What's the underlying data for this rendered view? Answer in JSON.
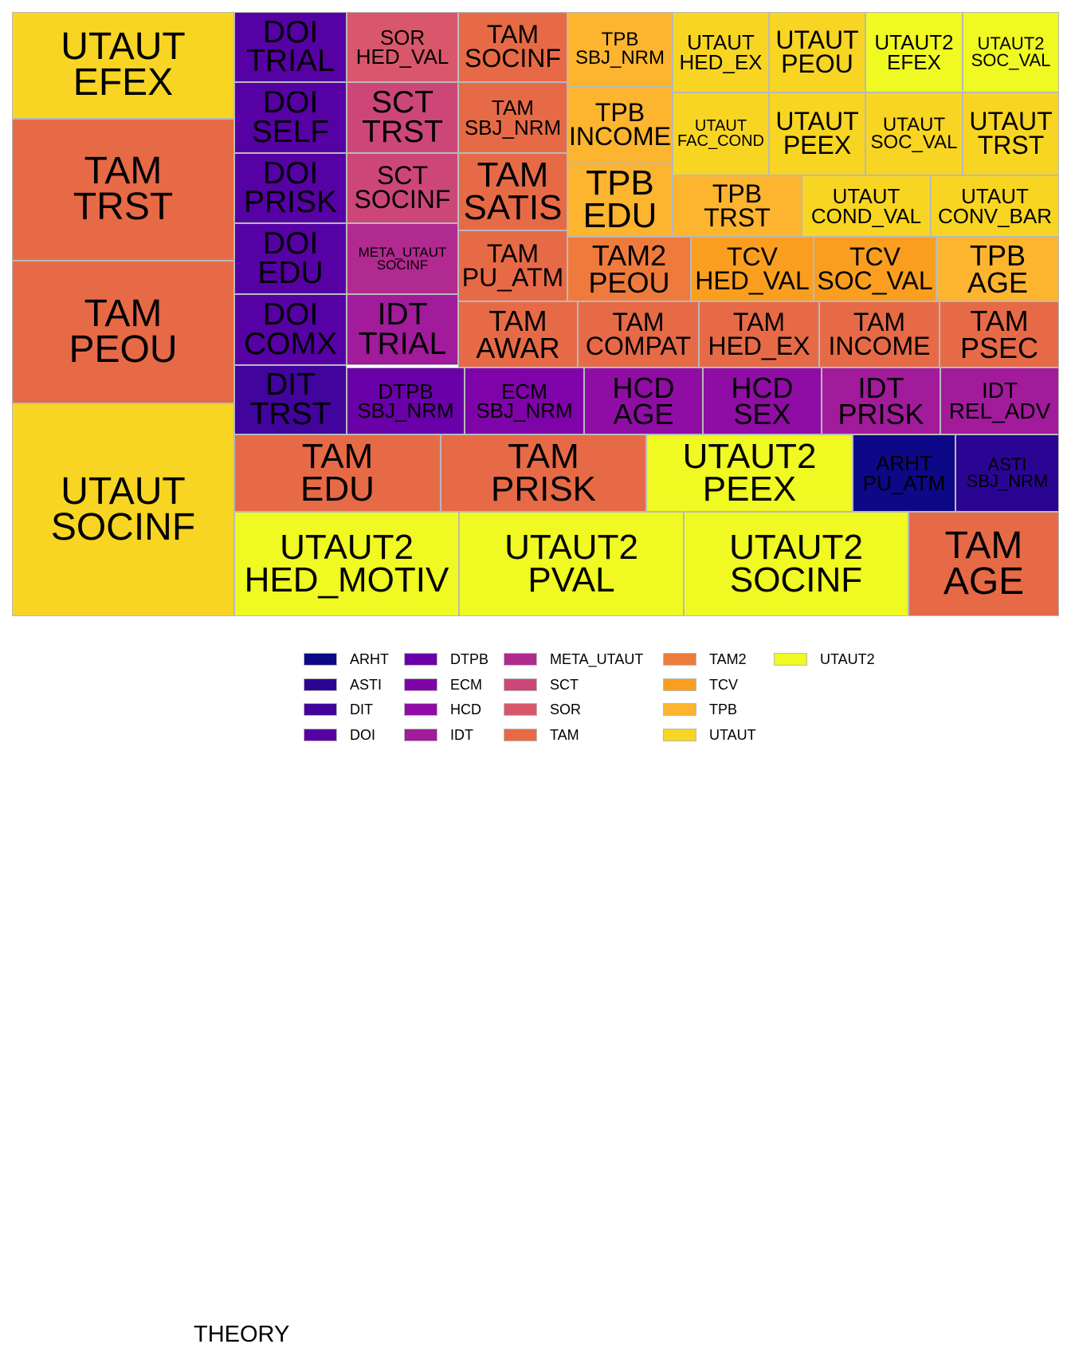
{
  "chart_data": {
    "type": "treemap",
    "title": "",
    "tiles": [
      {
        "theory": "UTAUT",
        "label": [
          "UTAUT",
          "EFEX"
        ],
        "value": 41
      },
      {
        "theory": "TAM",
        "label": [
          "TAM",
          "TRST"
        ],
        "value": 50
      },
      {
        "theory": "TAM",
        "label": [
          "TAM",
          "PEOU"
        ],
        "value": 50
      },
      {
        "theory": "UTAUT",
        "label": [
          "UTAUT",
          "SOCINF"
        ],
        "value": 75
      },
      {
        "theory": "DOI",
        "label": [
          "DOI",
          "TRIAL"
        ],
        "value": 12
      },
      {
        "theory": "DOI",
        "label": [
          "DOI",
          "SELF"
        ],
        "value": 12
      },
      {
        "theory": "DOI",
        "label": [
          "DOI",
          "PRISK"
        ],
        "value": 12
      },
      {
        "theory": "DOI",
        "label": [
          "DOI",
          "EDU"
        ],
        "value": 12
      },
      {
        "theory": "DOI",
        "label": [
          "DOI",
          "COMX"
        ],
        "value": 12
      },
      {
        "theory": "DIT",
        "label": [
          "DIT",
          "TRST"
        ],
        "value": 12
      },
      {
        "theory": "SOR",
        "label": [
          "SOR",
          "HED_VAL"
        ],
        "value": 12
      },
      {
        "theory": "SCT",
        "label": [
          "SCT",
          "TRST"
        ],
        "value": 12
      },
      {
        "theory": "SCT",
        "label": [
          "SCT",
          "SOCINF"
        ],
        "value": 12
      },
      {
        "theory": "META_UTAUT",
        "label": [
          "META_UTAUT",
          "SOCINF"
        ],
        "value": 12
      },
      {
        "theory": "IDT",
        "label": [
          "IDT",
          "TRIAL"
        ],
        "value": 12
      },
      {
        "theory": "TAM",
        "label": [
          "TAM",
          "SOCINF"
        ],
        "value": 12
      },
      {
        "theory": "TAM",
        "label": [
          "TAM",
          "SBJ_NRM"
        ],
        "value": 12
      },
      {
        "theory": "TAM",
        "label": [
          "TAM",
          "SATIS"
        ],
        "value": 12
      },
      {
        "theory": "TAM",
        "label": [
          "TAM",
          "PU_ATM"
        ],
        "value": 12
      },
      {
        "theory": "TPB",
        "label": [
          "TPB",
          "SBJ_NRM"
        ],
        "value": 12
      },
      {
        "theory": "TPB",
        "label": [
          "TPB",
          "INCOME"
        ],
        "value": 12
      },
      {
        "theory": "TPB",
        "label": [
          "TPB",
          "EDU"
        ],
        "value": 12
      },
      {
        "theory": "UTAUT",
        "label": [
          "UTAUT",
          "HED_EX"
        ],
        "value": 12
      },
      {
        "theory": "UTAUT",
        "label": [
          "UTAUT",
          "PEOU"
        ],
        "value": 12
      },
      {
        "theory": "UTAUT2",
        "label": [
          "UTAUT2",
          "EFEX"
        ],
        "value": 12
      },
      {
        "theory": "UTAUT2",
        "label": [
          "UTAUT2",
          "SOC_VAL"
        ],
        "value": 12
      },
      {
        "theory": "UTAUT",
        "label": [
          "UTAUT",
          "FAC_COND"
        ],
        "value": 12
      },
      {
        "theory": "UTAUT",
        "label": [
          "UTAUT",
          "PEEX"
        ],
        "value": 12
      },
      {
        "theory": "UTAUT",
        "label": [
          "UTAUT",
          "SOC_VAL"
        ],
        "value": 12
      },
      {
        "theory": "UTAUT",
        "label": [
          "UTAUT",
          "TRST"
        ],
        "value": 12
      },
      {
        "theory": "TPB",
        "label": [
          "TPB",
          "TRST"
        ],
        "value": 12
      },
      {
        "theory": "UTAUT",
        "label": [
          "UTAUT",
          "COND_VAL"
        ],
        "value": 12
      },
      {
        "theory": "UTAUT",
        "label": [
          "UTAUT",
          "CONV_BAR"
        ],
        "value": 12
      },
      {
        "theory": "TAM2",
        "label": [
          "TAM2",
          "PEOU"
        ],
        "value": 12
      },
      {
        "theory": "TCV",
        "label": [
          "TCV",
          "HED_VAL"
        ],
        "value": 12
      },
      {
        "theory": "TCV",
        "label": [
          "TCV",
          "SOC_VAL"
        ],
        "value": 12
      },
      {
        "theory": "TPB",
        "label": [
          "TPB",
          "AGE"
        ],
        "value": 12
      },
      {
        "theory": "TAM",
        "label": [
          "TAM",
          "AWAR"
        ],
        "value": 12
      },
      {
        "theory": "TAM",
        "label": [
          "TAM",
          "COMPAT"
        ],
        "value": 12
      },
      {
        "theory": "TAM",
        "label": [
          "TAM",
          "HED_EX"
        ],
        "value": 12
      },
      {
        "theory": "TAM",
        "label": [
          "TAM",
          "INCOME"
        ],
        "value": 12
      },
      {
        "theory": "TAM",
        "label": [
          "TAM",
          "PSEC"
        ],
        "value": 12
      },
      {
        "theory": "DTPB",
        "label": [
          "DTPB",
          "SBJ_NRM"
        ],
        "value": 12
      },
      {
        "theory": "ECM",
        "label": [
          "ECM",
          "SBJ_NRM"
        ],
        "value": 12
      },
      {
        "theory": "HCD",
        "label": [
          "HCD",
          "AGE"
        ],
        "value": 12
      },
      {
        "theory": "HCD",
        "label": [
          "HCD",
          "SEX"
        ],
        "value": 12
      },
      {
        "theory": "IDT",
        "label": [
          "IDT",
          "PRISK"
        ],
        "value": 12
      },
      {
        "theory": "IDT",
        "label": [
          "IDT",
          "REL_ADV"
        ],
        "value": 12
      },
      {
        "theory": "TAM",
        "label": [
          "TAM",
          "EDU"
        ],
        "value": 25
      },
      {
        "theory": "TAM",
        "label": [
          "TAM",
          "PRISK"
        ],
        "value": 25
      },
      {
        "theory": "UTAUT2",
        "label": [
          "UTAUT2",
          "PEEX"
        ],
        "value": 25
      },
      {
        "theory": "ARHT",
        "label": [
          "ARHT",
          "PU_ATM"
        ],
        "value": 12
      },
      {
        "theory": "ASTI",
        "label": [
          "ASTI",
          "SBJ_NRM"
        ],
        "value": 12
      },
      {
        "theory": "UTAUT2",
        "label": [
          "UTAUT2",
          "HED_MOTIV"
        ],
        "value": 37
      },
      {
        "theory": "UTAUT2",
        "label": [
          "UTAUT2",
          "PVAL"
        ],
        "value": 37
      },
      {
        "theory": "UTAUT2",
        "label": [
          "UTAUT2",
          "SOCINF"
        ],
        "value": 37
      },
      {
        "theory": "TAM",
        "label": [
          "TAM",
          "AGE"
        ],
        "value": 25
      }
    ],
    "legend": {
      "title": "THEORY",
      "placement": "bottom",
      "items": [
        {
          "name": "ARHT",
          "color": "#0d0887"
        },
        {
          "name": "ASTI",
          "color": "#2a0593"
        },
        {
          "name": "DIT",
          "color": "#41049d"
        },
        {
          "name": "DOI",
          "color": "#5601a4"
        },
        {
          "name": "DTPB",
          "color": "#6a00a8"
        },
        {
          "name": "ECM",
          "color": "#7e03a8"
        },
        {
          "name": "HCD",
          "color": "#8f0da4"
        },
        {
          "name": "IDT",
          "color": "#a11b9b"
        },
        {
          "name": "META_UTAUT",
          "color": "#b12a90"
        },
        {
          "name": "SCT",
          "color": "#cc4778"
        },
        {
          "name": "SOR",
          "color": "#d8576b"
        },
        {
          "name": "TAM",
          "color": "#e76a47"
        },
        {
          "name": "TAM2",
          "color": "#ee7b3c"
        },
        {
          "name": "TCV",
          "color": "#fa9e20"
        },
        {
          "name": "TPB",
          "color": "#fdb42f"
        },
        {
          "name": "UTAUT",
          "color": "#f8d522"
        },
        {
          "name": "UTAUT2",
          "color": "#f0f921"
        }
      ]
    }
  }
}
